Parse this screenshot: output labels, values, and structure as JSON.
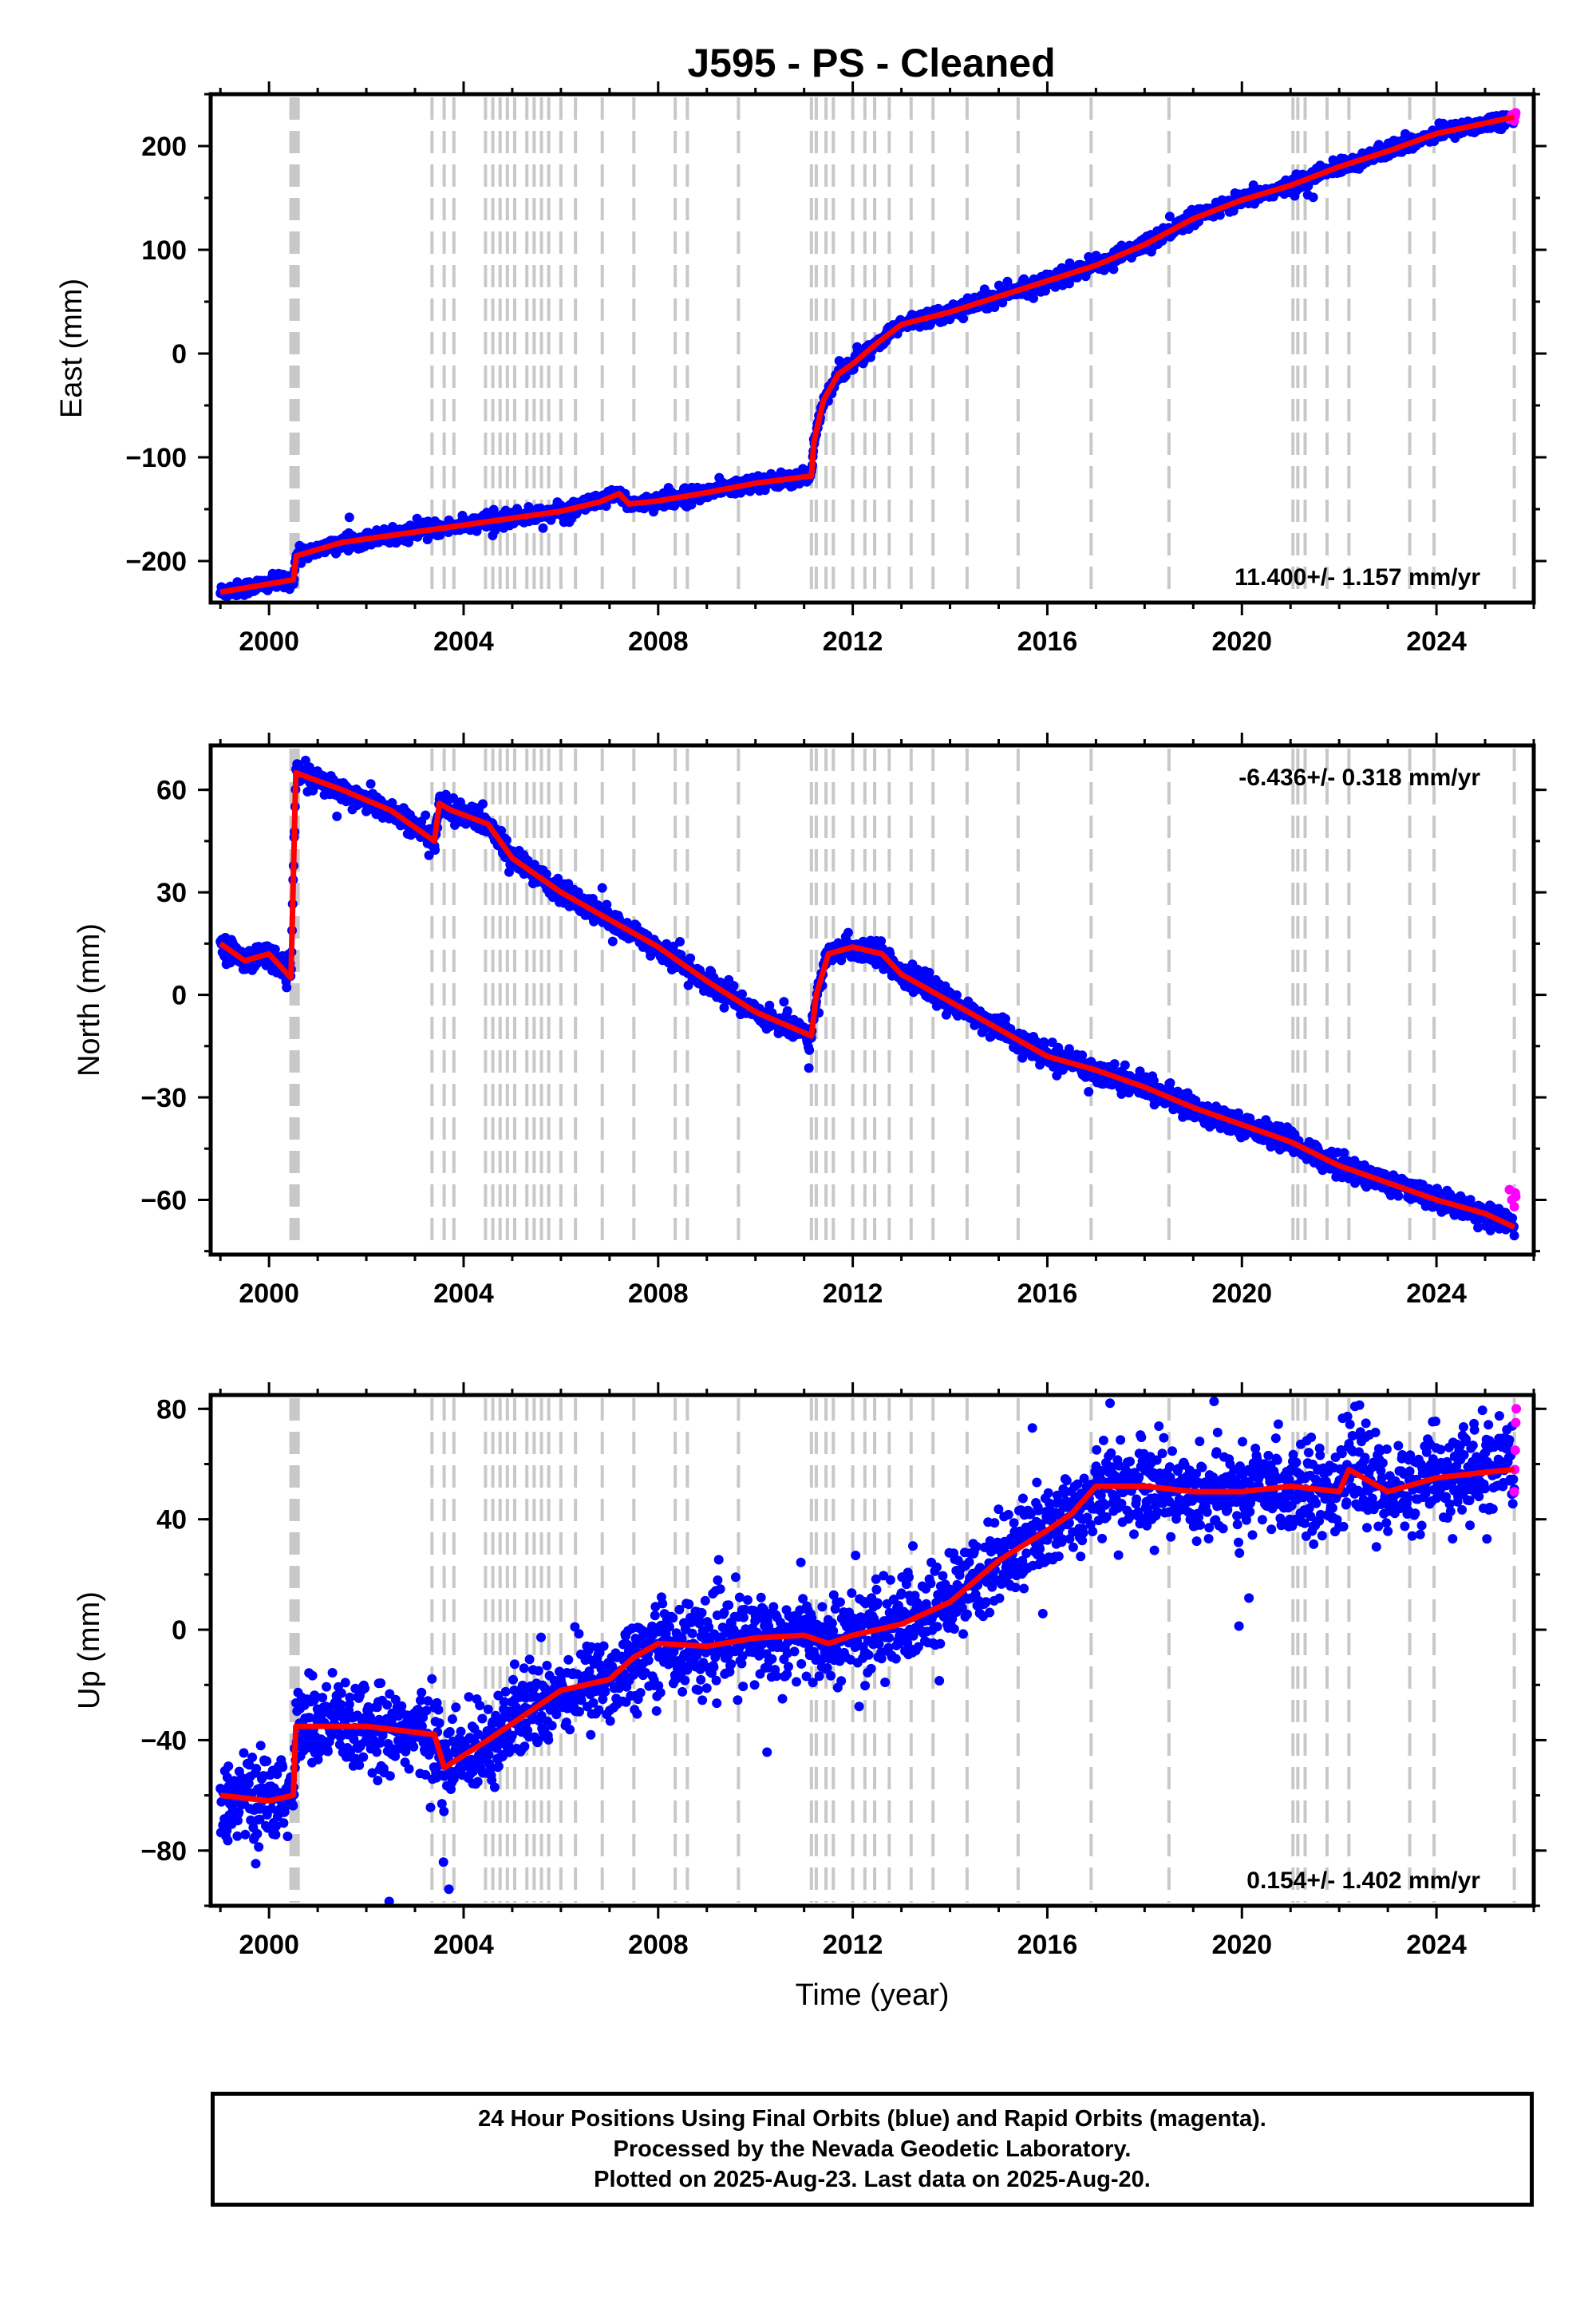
{
  "chart_data": {
    "type": "scatter",
    "title": "J595  - PS - Cleaned",
    "xlabel": "Time (year)",
    "xlim": [
      1998.8,
      2026.0
    ],
    "xticks": [
      2000,
      2004,
      2008,
      2012,
      2016,
      2020,
      2024
    ],
    "xtick_labels": [
      "2000",
      "2004",
      "2008",
      "2012",
      "2016",
      "2020",
      "2024"
    ],
    "colors": {
      "final_orbits": "#0000ff",
      "rapid_orbits": "#ff00ff",
      "model": "#ff0000",
      "events": "#c8c8c8"
    },
    "event_lines_x": [
      2000.45,
      2000.5,
      2000.55,
      2000.6,
      2003.35,
      2003.6,
      2003.8,
      2004.45,
      2004.6,
      2004.75,
      2004.9,
      2005.05,
      2005.3,
      2005.45,
      2005.6,
      2005.75,
      2006.0,
      2006.3,
      2006.85,
      2007.5,
      2008.35,
      2008.6,
      2009.65,
      2011.15,
      2011.25,
      2011.45,
      2011.6,
      2012.0,
      2012.25,
      2012.45,
      2012.75,
      2013.2,
      2013.65,
      2014.35,
      2015.4,
      2016.9,
      2018.5,
      2021.05,
      2021.15,
      2021.3,
      2021.75,
      2022.2,
      2023.45,
      2023.95,
      2025.6
    ],
    "panels": [
      {
        "ylabel": "East (mm)",
        "ylim": [
          -240,
          250
        ],
        "yticks": [
          -200,
          -100,
          0,
          100,
          200
        ],
        "ytick_labels": [
          "−200",
          "−100",
          "0",
          "100",
          "200"
        ],
        "rate_label": "11.400+/- 1.157 mm/yr",
        "rate_position": "bottom-right",
        "noise_mm": 3.5,
        "model": {
          "x": [
            1999.0,
            2000.5,
            2000.56,
            2001.5,
            2003.0,
            2004.5,
            2006.0,
            2006.8,
            2007.2,
            2007.4,
            2008.0,
            2009.0,
            2010.0,
            2011.15,
            2011.2,
            2011.4,
            2011.7,
            2012.0,
            2012.5,
            2013.0,
            2014.0,
            2015.0,
            2016.0,
            2017.0,
            2018.0,
            2019.0,
            2020.0,
            2021.0,
            2022.0,
            2023.0,
            2024.0,
            2025.0,
            2025.6
          ],
          "y": [
            -230,
            -218,
            -195,
            -182,
            -172,
            -162,
            -152,
            -143,
            -135,
            -145,
            -142,
            -134,
            -125,
            -118,
            -85,
            -45,
            -20,
            -10,
            10,
            28,
            40,
            55,
            70,
            85,
            105,
            130,
            148,
            162,
            180,
            195,
            212,
            222,
            228
          ]
        },
        "rapid_orbits": {
          "x": [
            2025.5,
            2025.55,
            2025.6,
            2025.62,
            2025.63
          ],
          "y": [
            226,
            230,
            224,
            229,
            232
          ]
        }
      },
      {
        "ylabel": "North (mm)",
        "ylim": [
          -76,
          73
        ],
        "yticks": [
          -60,
          -30,
          0,
          30,
          60
        ],
        "ytick_labels": [
          "−60",
          "−30",
          "0",
          "30",
          "60"
        ],
        "rate_label": "-6.436+/- 0.318 mm/yr",
        "rate_position": "top-right",
        "noise_mm": 1.6,
        "model": {
          "x": [
            1999.0,
            1999.5,
            2000.0,
            2000.45,
            2000.55,
            2001.5,
            2002.5,
            2003.4,
            2003.5,
            2003.75,
            2004.5,
            2005.0,
            2006.0,
            2007.0,
            2008.0,
            2009.0,
            2010.0,
            2011.15,
            2011.25,
            2011.5,
            2012.0,
            2012.6,
            2013.0,
            2014.0,
            2015.0,
            2016.0,
            2017.0,
            2018.0,
            2019.0,
            2020.0,
            2021.0,
            2022.0,
            2023.0,
            2024.0,
            2025.0,
            2025.6
          ],
          "y": [
            15,
            10,
            12,
            5,
            65,
            60,
            54,
            45,
            56,
            54,
            50,
            40,
            30,
            22,
            14,
            4,
            -5,
            -12,
            0,
            12,
            14,
            12,
            6,
            -2,
            -10,
            -18,
            -22,
            -27,
            -33,
            -38,
            -43,
            -50,
            -55,
            -60,
            -64,
            -68
          ]
        },
        "rapid_orbits": {
          "x": [
            2025.5,
            2025.55,
            2025.6,
            2025.62,
            2025.63
          ],
          "y": [
            -57,
            -60,
            -62,
            -58,
            -59
          ]
        }
      },
      {
        "ylabel": "Up (mm)",
        "ylim": [
          -100,
          85
        ],
        "yticks": [
          -80,
          -40,
          0,
          40,
          80
        ],
        "ytick_labels": [
          "−80",
          "−40",
          "0",
          "40",
          "80"
        ],
        "rate_label": "0.154+/- 1.402 mm/yr",
        "rate_position": "bottom-right",
        "noise_mm": 8,
        "model": {
          "x": [
            1999.0,
            2000.0,
            2000.5,
            2000.55,
            2002.0,
            2003.4,
            2003.6,
            2004.5,
            2005.5,
            2006.0,
            2007.0,
            2007.5,
            2008.0,
            2009.0,
            2010.0,
            2011.0,
            2011.5,
            2012.0,
            2013.0,
            2014.0,
            2015.0,
            2016.0,
            2016.5,
            2017.0,
            2018.0,
            2019.0,
            2020.0,
            2021.0,
            2022.0,
            2022.2,
            2023.0,
            2024.0,
            2025.0,
            2025.6
          ],
          "y": [
            -60,
            -62,
            -60,
            -35,
            -35,
            -38,
            -50,
            -40,
            -28,
            -22,
            -18,
            -10,
            -5,
            -6,
            -3,
            -2,
            -5,
            -2,
            2,
            10,
            25,
            36,
            42,
            52,
            52,
            50,
            50,
            52,
            50,
            58,
            50,
            55,
            57,
            58
          ]
        },
        "rapid_orbits": {
          "x": [
            2025.6,
            2025.61,
            2025.62,
            2025.63,
            2025.64
          ],
          "y": [
            50,
            58,
            65,
            75,
            80
          ]
        }
      }
    ]
  },
  "footer": {
    "line1": "24 Hour Positions Using Final Orbits (blue) and Rapid Orbits (magenta).",
    "line2": "Processed by the Nevada Geodetic Laboratory.",
    "line3": "Plotted on 2025-Aug-23. Last data on 2025-Aug-20."
  }
}
